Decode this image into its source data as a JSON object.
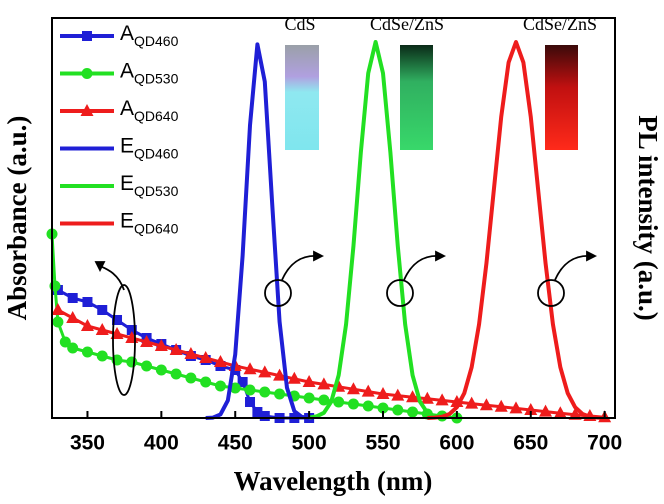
{
  "chart_data": {
    "type": "line",
    "xlabel": "Wavelength (nm)",
    "ylabel": "Absorbance (a.u.)",
    "y2label": "PL intensity (a.u.)",
    "xlim": [
      326,
      707
    ],
    "xticks": [
      350,
      400,
      450,
      500,
      550,
      600,
      650,
      700
    ],
    "ylim": [
      0,
      1
    ],
    "y2lim": [
      0,
      1
    ],
    "legend": "upper left",
    "annotations": [
      "CdS",
      "CdSe/ZnS",
      "CdSe/ZnS"
    ],
    "series": [
      {
        "name": "AQD460",
        "color": "#1f1fd6",
        "marker": "square",
        "x": [
          330,
          340,
          350,
          360,
          370,
          380,
          390,
          400,
          410,
          420,
          430,
          440,
          450,
          455,
          460,
          465,
          470,
          480,
          490,
          500
        ],
        "values": [
          0.32,
          0.3,
          0.29,
          0.27,
          0.245,
          0.22,
          0.2,
          0.185,
          0.17,
          0.155,
          0.145,
          0.13,
          0.12,
          0.09,
          0.04,
          0.015,
          0.005,
          0,
          0,
          0
        ]
      },
      {
        "name": "AQD530",
        "color": "#22e022",
        "marker": "circle",
        "x": [
          326,
          328,
          330,
          335,
          340,
          350,
          360,
          370,
          380,
          390,
          400,
          410,
          420,
          430,
          440,
          450,
          460,
          470,
          480,
          490,
          500,
          510,
          520,
          530,
          540,
          550,
          560,
          570,
          580,
          590,
          600
        ],
        "values": [
          0.46,
          0.33,
          0.24,
          0.19,
          0.175,
          0.165,
          0.155,
          0.145,
          0.14,
          0.13,
          0.12,
          0.11,
          0.1,
          0.09,
          0.08,
          0.075,
          0.07,
          0.065,
          0.06,
          0.055,
          0.05,
          0.045,
          0.04,
          0.035,
          0.03,
          0.025,
          0.02,
          0.015,
          0.01,
          0.005,
          0
        ]
      },
      {
        "name": "AQD640",
        "color": "#ee1c1c",
        "marker": "triangle",
        "x": [
          330,
          340,
          350,
          360,
          370,
          380,
          390,
          400,
          410,
          420,
          430,
          440,
          450,
          460,
          470,
          480,
          490,
          500,
          510,
          520,
          530,
          540,
          550,
          560,
          570,
          580,
          590,
          600,
          610,
          620,
          630,
          640,
          650,
          660,
          670,
          680,
          690,
          700
        ],
        "values": [
          0.27,
          0.25,
          0.23,
          0.22,
          0.21,
          0.2,
          0.19,
          0.18,
          0.17,
          0.16,
          0.15,
          0.14,
          0.13,
          0.122,
          0.114,
          0.106,
          0.098,
          0.09,
          0.084,
          0.078,
          0.072,
          0.066,
          0.06,
          0.056,
          0.052,
          0.048,
          0.044,
          0.04,
          0.036,
          0.032,
          0.028,
          0.024,
          0.02,
          0.016,
          0.012,
          0.008,
          0.005,
          0.002
        ]
      },
      {
        "name": "EQD460",
        "color": "#1f1fd6",
        "axis": "y2",
        "x": [
          430,
          435,
          440,
          445,
          450,
          455,
          460,
          465,
          470,
          475,
          480,
          485,
          490,
          495,
          500
        ],
        "values": [
          0,
          0.001,
          0.009,
          0.044,
          0.159,
          0.406,
          0.732,
          0.934,
          0.841,
          0.536,
          0.241,
          0.076,
          0.017,
          0.003,
          0
        ]
      },
      {
        "name": "EQD530",
        "color": "#22e022",
        "axis": "y2",
        "x": [
          500,
          505,
          510,
          515,
          520,
          525,
          530,
          535,
          540,
          545,
          550,
          555,
          560,
          565,
          570,
          575,
          580,
          585,
          590
        ],
        "values": [
          0.001,
          0.004,
          0.013,
          0.041,
          0.107,
          0.234,
          0.43,
          0.664,
          0.862,
          0.94,
          0.862,
          0.664,
          0.43,
          0.234,
          0.107,
          0.041,
          0.013,
          0.004,
          0.001
        ]
      },
      {
        "name": "EQD640",
        "color": "#ee1c1c",
        "axis": "y2",
        "x": [
          580,
          585,
          590,
          595,
          600,
          605,
          610,
          615,
          620,
          625,
          630,
          635,
          640,
          645,
          650,
          655,
          660,
          665,
          670,
          675,
          680,
          685,
          690,
          695,
          700
        ],
        "values": [
          0,
          0.001,
          0.003,
          0.01,
          0.027,
          0.062,
          0.127,
          0.234,
          0.387,
          0.57,
          0.753,
          0.889,
          0.94,
          0.889,
          0.753,
          0.57,
          0.387,
          0.234,
          0.127,
          0.062,
          0.027,
          0.01,
          0.003,
          0.001,
          0
        ]
      }
    ]
  }
}
